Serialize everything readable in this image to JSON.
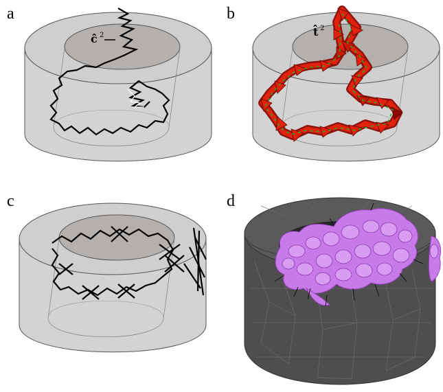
{
  "panels": [
    {
      "letter": "a",
      "annotation": "ĉ",
      "annotation_sup": "2"
    },
    {
      "letter": "b",
      "annotation": "t̂",
      "annotation_sup": "2"
    },
    {
      "letter": "c"
    },
    {
      "letter": "d"
    }
  ],
  "colors": {
    "cylinder_fill": "#d3d3d3",
    "cylinder_top": "#b3b0ae",
    "cylinder_edge": "#555555",
    "chain": "#000000",
    "cone_fill": "#e0220e",
    "cone_dark": "#8a0a05",
    "director": "#22b022",
    "mesh_body": "#4e4e4e",
    "mesh_line": "#6e6e6e",
    "membrane": "#c77be8",
    "membrane_edge": "#9a3fc0"
  }
}
